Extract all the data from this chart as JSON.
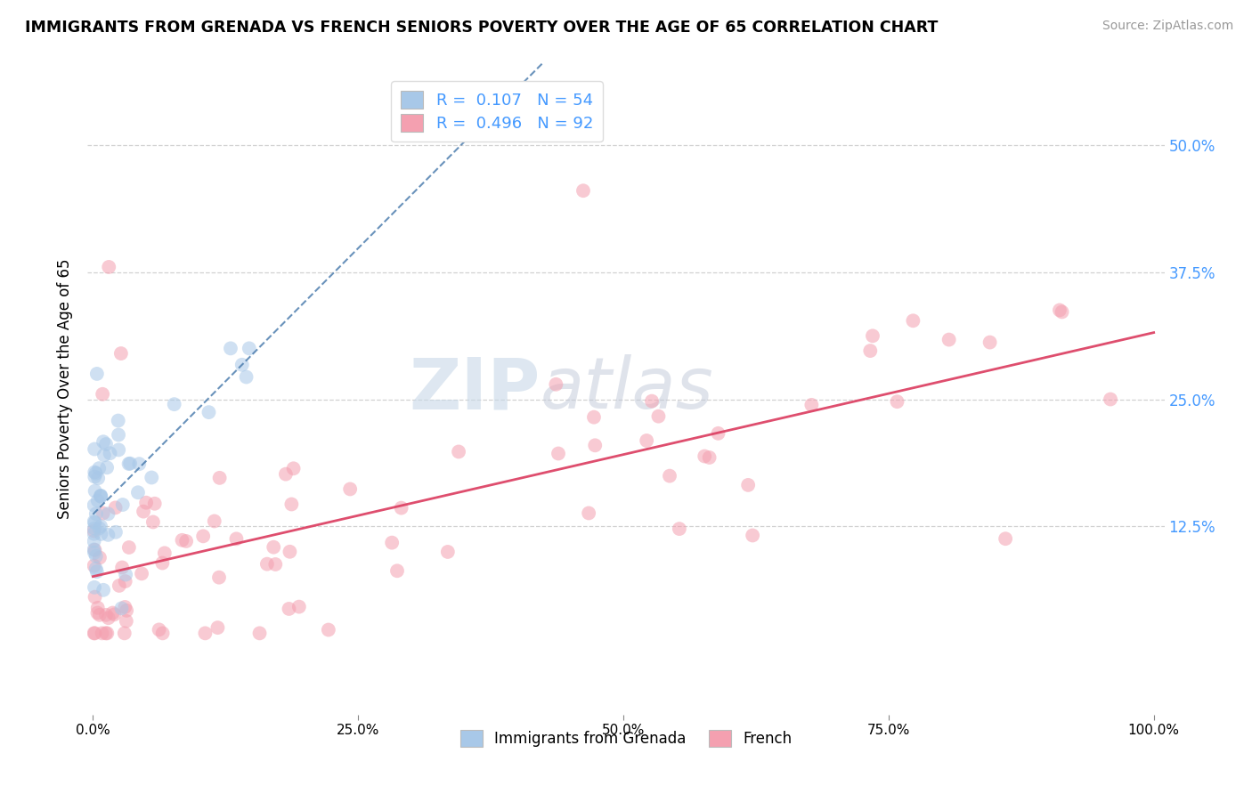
{
  "title": "IMMIGRANTS FROM GRENADA VS FRENCH SENIORS POVERTY OVER THE AGE OF 65 CORRELATION CHART",
  "source": "Source: ZipAtlas.com",
  "ylabel": "Seniors Poverty Over the Age of 65",
  "xlim": [
    -0.005,
    1.01
  ],
  "ylim": [
    -0.06,
    0.58
  ],
  "xticks": [
    0.0,
    0.25,
    0.5,
    0.75,
    1.0
  ],
  "xticklabels": [
    "0.0%",
    "25.0%",
    "50.0%",
    "75.0%",
    "100.0%"
  ],
  "ytick_positions": [
    0.125,
    0.25,
    0.375,
    0.5
  ],
  "yticklabels_right": [
    "12.5%",
    "25.0%",
    "37.5%",
    "50.0%"
  ],
  "legend_line1": "R =  0.107   N = 54",
  "legend_line2": "R =  0.496   N = 92",
  "color_blue": "#a8c8e8",
  "color_pink": "#f4a0b0",
  "color_blue_line": "#4477aa",
  "color_pink_line": "#dd4466",
  "color_right_axis": "#4499ff",
  "watermark_zip": "ZIP",
  "watermark_atlas": "atlas",
  "grid_color": "#cccccc",
  "background": "#ffffff",
  "scatter_size": 130,
  "scatter_alpha": 0.55
}
